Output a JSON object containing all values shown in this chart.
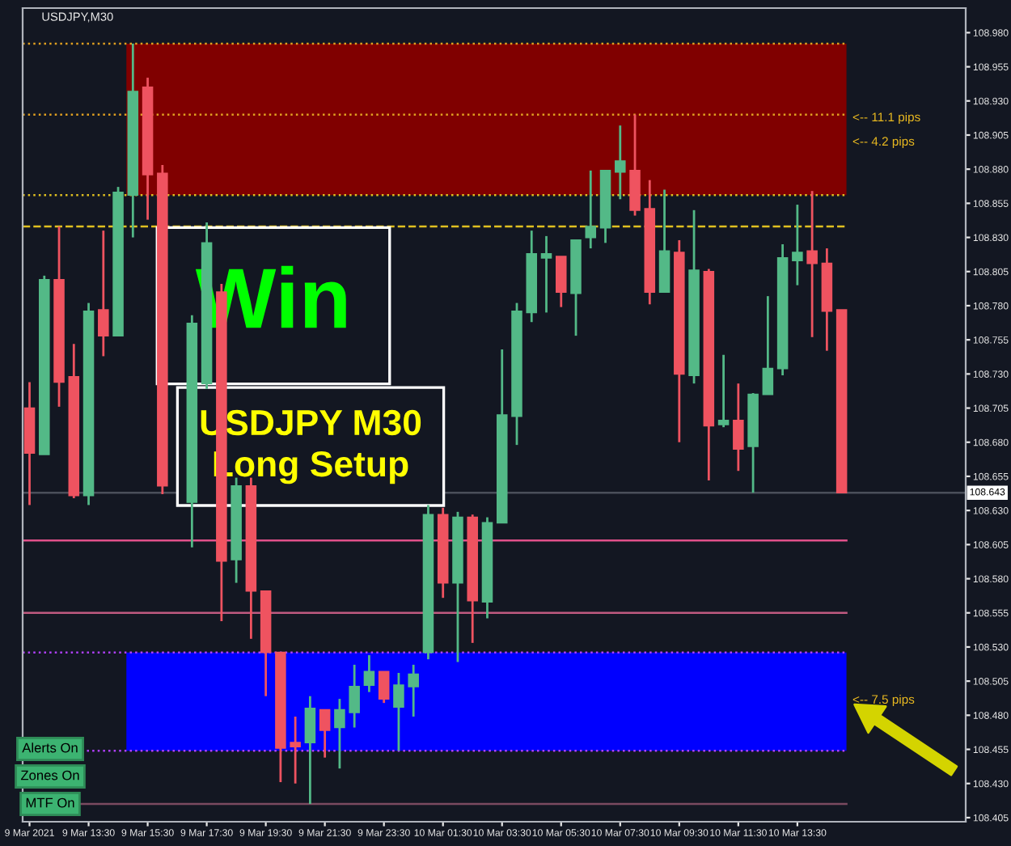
{
  "chart_data": {
    "type": "candlestick",
    "title": "USDJPY,M30",
    "x": [
      "2021-03-09T11:30",
      "2021-03-09T12:00",
      "2021-03-09T12:30",
      "2021-03-09T13:00",
      "2021-03-09T13:30",
      "2021-03-09T14:00",
      "2021-03-09T14:30",
      "2021-03-09T15:00",
      "2021-03-09T15:30",
      "2021-03-09T16:00",
      "2021-03-09T17:00",
      "2021-03-09T17:30",
      "2021-03-09T18:00",
      "2021-03-09T18:30",
      "2021-03-09T19:00",
      "2021-03-09T19:30",
      "2021-03-09T20:00",
      "2021-03-09T20:30",
      "2021-03-09T21:00",
      "2021-03-09T21:30",
      "2021-03-09T22:00",
      "2021-03-09T22:30",
      "2021-03-09T23:00",
      "2021-03-09T23:30",
      "2021-03-10T00:00",
      "2021-03-10T00:30",
      "2021-03-10T01:00",
      "2021-03-10T01:30",
      "2021-03-10T02:00",
      "2021-03-10T02:30",
      "2021-03-10T03:00",
      "2021-03-10T03:30",
      "2021-03-10T04:00",
      "2021-03-10T04:30",
      "2021-03-10T05:00",
      "2021-03-10T05:30",
      "2021-03-10T06:00",
      "2021-03-10T06:30",
      "2021-03-10T07:00",
      "2021-03-10T07:30",
      "2021-03-10T08:00",
      "2021-03-10T08:30",
      "2021-03-10T09:00",
      "2021-03-10T09:30",
      "2021-03-10T10:00",
      "2021-03-10T10:30",
      "2021-03-10T11:00",
      "2021-03-10T11:30",
      "2021-03-10T12:00",
      "2021-03-10T12:30",
      "2021-03-10T13:00",
      "2021-03-10T13:30",
      "2021-03-10T14:00",
      "2021-03-10T14:30",
      "2021-03-10T15:00"
    ],
    "ohlc": [
      [
        108.705,
        108.724,
        108.634,
        108.672
      ],
      [
        108.671,
        108.802,
        108.671,
        108.799
      ],
      [
        108.799,
        108.838,
        108.706,
        108.724
      ],
      [
        108.728,
        108.752,
        108.639,
        108.641
      ],
      [
        108.641,
        108.782,
        108.634,
        108.776
      ],
      [
        108.777,
        108.835,
        108.743,
        108.758
      ],
      [
        108.758,
        108.867,
        108.758,
        108.863
      ],
      [
        108.861,
        108.972,
        108.83,
        108.937
      ],
      [
        108.94,
        108.947,
        108.843,
        108.876
      ],
      [
        108.877,
        108.883,
        108.642,
        108.648
      ],
      [
        108.636,
        108.773,
        108.603,
        108.767
      ],
      [
        108.723,
        108.841,
        108.719,
        108.826
      ],
      [
        108.79,
        108.796,
        108.549,
        108.593
      ],
      [
        108.594,
        108.654,
        108.577,
        108.648
      ],
      [
        108.648,
        108.654,
        108.536,
        108.571
      ],
      [
        108.571,
        108.571,
        108.494,
        108.526
      ],
      [
        108.526,
        108.526,
        108.431,
        108.456
      ],
      [
        108.46,
        108.479,
        108.43,
        108.457
      ],
      [
        108.46,
        108.494,
        108.415,
        108.485
      ],
      [
        108.484,
        108.484,
        108.449,
        108.469
      ],
      [
        108.471,
        108.492,
        108.441,
        108.484
      ],
      [
        108.482,
        108.517,
        108.471,
        108.501
      ],
      [
        108.502,
        108.524,
        108.497,
        108.512
      ],
      [
        108.512,
        108.512,
        108.489,
        108.492
      ],
      [
        108.486,
        108.511,
        108.454,
        108.502
      ],
      [
        108.501,
        108.517,
        108.479,
        108.51
      ],
      [
        108.526,
        108.634,
        108.521,
        108.627
      ],
      [
        108.627,
        108.632,
        108.566,
        108.577
      ],
      [
        108.577,
        108.629,
        108.519,
        108.625
      ],
      [
        108.625,
        108.627,
        108.533,
        108.564
      ],
      [
        108.563,
        108.625,
        108.551,
        108.621
      ],
      [
        108.621,
        108.748,
        108.621,
        108.7
      ],
      [
        108.699,
        108.782,
        108.678,
        108.776
      ],
      [
        108.775,
        108.835,
        108.768,
        108.818
      ],
      [
        108.815,
        108.831,
        108.775,
        108.818
      ],
      [
        108.816,
        108.816,
        108.779,
        108.79
      ],
      [
        108.789,
        108.828,
        108.758,
        108.828
      ],
      [
        108.83,
        108.879,
        108.822,
        108.838
      ],
      [
        108.837,
        108.879,
        108.826,
        108.879
      ],
      [
        108.878,
        108.912,
        108.858,
        108.886
      ],
      [
        108.879,
        108.92,
        108.846,
        108.85
      ],
      [
        108.851,
        108.872,
        108.781,
        108.79
      ],
      [
        108.79,
        108.865,
        108.79,
        108.82
      ],
      [
        108.819,
        108.828,
        108.68,
        108.73
      ],
      [
        108.729,
        108.85,
        108.723,
        108.806
      ],
      [
        108.805,
        108.807,
        108.652,
        108.692
      ],
      [
        108.693,
        108.744,
        108.691,
        108.696
      ],
      [
        108.696,
        108.723,
        108.659,
        108.675
      ],
      [
        108.677,
        108.716,
        108.643,
        108.715
      ],
      [
        108.715,
        108.787,
        108.715,
        108.734
      ],
      [
        108.734,
        108.825,
        108.729,
        108.815
      ],
      [
        108.813,
        108.854,
        108.795,
        108.819
      ],
      [
        108.82,
        108.864,
        108.757,
        108.811
      ],
      [
        108.811,
        108.822,
        108.747,
        108.776
      ],
      [
        108.777,
        108.777,
        108.643,
        108.643
      ]
    ],
    "colors": [
      "#ef5360",
      "#53b987",
      "#ef5360",
      "#ef5360",
      "#53b987",
      "#ef5360",
      "#53b987",
      "#53b987",
      "#ef5360",
      "#ef5360",
      "#53b987",
      "#53b987",
      "#ef5360",
      "#53b987",
      "#ef5360",
      "#ef5360",
      "#ef5360",
      "#ef5360",
      "#53b987",
      "#ef5360",
      "#53b987",
      "#53b987",
      "#53b987",
      "#ef5360",
      "#53b987",
      "#53b987",
      "#53b987",
      "#ef5360",
      "#53b987",
      "#ef5360",
      "#53b987",
      "#53b987",
      "#53b987",
      "#53b987",
      "#53b987",
      "#ef5360",
      "#53b987",
      "#53b987",
      "#53b987",
      "#53b987",
      "#ef5360",
      "#ef5360",
      "#53b987",
      "#ef5360",
      "#53b987",
      "#ef5360",
      "#53b987",
      "#ef5360",
      "#53b987",
      "#53b987",
      "#53b987",
      "#53b987",
      "#ef5360",
      "#ef5360",
      "#ef5360"
    ],
    "xlim": [
      "2021-03-09T11:16",
      "2021-03-10T19:12"
    ],
    "xticks": [
      {
        "value": "2021-03-09T11:30",
        "label": "9 Mar 2021"
      },
      {
        "value": "2021-03-09T13:30",
        "label": "9 Mar 13:30"
      },
      {
        "value": "2021-03-09T15:30",
        "label": "9 Mar 15:30"
      },
      {
        "value": "2021-03-09T17:30",
        "label": "9 Mar 17:30"
      },
      {
        "value": "2021-03-09T19:30",
        "label": "9 Mar 19:30"
      },
      {
        "value": "2021-03-09T21:30",
        "label": "9 Mar 21:30"
      },
      {
        "value": "2021-03-09T23:30",
        "label": "9 Mar 23:30"
      },
      {
        "value": "2021-03-10T01:30",
        "label": "10 Mar 01:30"
      },
      {
        "value": "2021-03-10T03:30",
        "label": "10 Mar 03:30"
      },
      {
        "value": "2021-03-10T05:30",
        "label": "10 Mar 05:30"
      },
      {
        "value": "2021-03-10T07:30",
        "label": "10 Mar 07:30"
      },
      {
        "value": "2021-03-10T09:30",
        "label": "10 Mar 09:30"
      },
      {
        "value": "2021-03-10T11:30",
        "label": "10 Mar 11:30"
      },
      {
        "value": "2021-03-10T13:30",
        "label": "10 Mar 13:30"
      }
    ],
    "ylim": [
      108.402,
      108.998
    ],
    "yticks": [
      {
        "value": 108.405,
        "label": "108.405"
      },
      {
        "value": 108.43,
        "label": "108.430"
      },
      {
        "value": 108.455,
        "label": "108.455"
      },
      {
        "value": 108.48,
        "label": "108.480"
      },
      {
        "value": 108.505,
        "label": "108.505"
      },
      {
        "value": 108.53,
        "label": "108.530"
      },
      {
        "value": 108.555,
        "label": "108.555"
      },
      {
        "value": 108.58,
        "label": "108.580"
      },
      {
        "value": 108.605,
        "label": "108.605"
      },
      {
        "value": 108.63,
        "label": "108.630"
      },
      {
        "value": 108.655,
        "label": "108.655"
      },
      {
        "value": 108.68,
        "label": "108.680"
      },
      {
        "value": 108.705,
        "label": "108.705"
      },
      {
        "value": 108.73,
        "label": "108.730"
      },
      {
        "value": 108.755,
        "label": "108.755"
      },
      {
        "value": 108.78,
        "label": "108.780"
      },
      {
        "value": 108.805,
        "label": "108.805"
      },
      {
        "value": 108.83,
        "label": "108.830"
      },
      {
        "value": 108.855,
        "label": "108.855"
      },
      {
        "value": 108.88,
        "label": "108.880"
      },
      {
        "value": 108.905,
        "label": "108.905"
      },
      {
        "value": 108.93,
        "label": "108.930"
      },
      {
        "value": 108.955,
        "label": "108.955"
      },
      {
        "value": 108.98,
        "label": "108.980"
      }
    ],
    "bands": [
      {
        "axis": "y",
        "from": 108.861,
        "to": 108.972,
        "color": "#800000"
      },
      {
        "axis": "y",
        "from": 108.454,
        "to": 108.526,
        "color": "#0000ff"
      }
    ],
    "ref_lines": [
      {
        "axis": "y",
        "value": 108.972,
        "color": "#e0a020",
        "line_style": "dotted"
      },
      {
        "axis": "y",
        "value": 108.92,
        "color": "#e0a020",
        "line_style": "dotted"
      },
      {
        "axis": "y",
        "value": 108.861,
        "color": "#e0c020",
        "line_style": "dotted"
      },
      {
        "axis": "y",
        "value": 108.838,
        "color": "#e0c020",
        "line_style": "dashed"
      },
      {
        "axis": "y",
        "value": 108.643,
        "label": "108.643",
        "color": "#4a4f5a",
        "line_style": "solid"
      },
      {
        "axis": "y",
        "value": 108.608,
        "color": "#e0508a",
        "line_style": "solid"
      },
      {
        "axis": "y",
        "value": 108.555,
        "color": "#c05a80",
        "line_style": "solid"
      },
      {
        "axis": "y",
        "value": 108.526,
        "color": "#b040ff",
        "line_style": "dotted"
      },
      {
        "axis": "y",
        "value": 108.454,
        "color": "#b040ff",
        "line_style": "dotted"
      },
      {
        "axis": "y",
        "value": 108.415,
        "color": "#7a4a60",
        "line_style": "solid"
      }
    ],
    "annotations": [
      "Win",
      "USDJPY M30\nLong Setup",
      "<-- 11.1 pips",
      "<-- 4.2 pips",
      "<-- 7.5 pips",
      "Alerts On",
      "Zones On",
      "MTF On"
    ],
    "grid": false,
    "legend": false
  }
}
